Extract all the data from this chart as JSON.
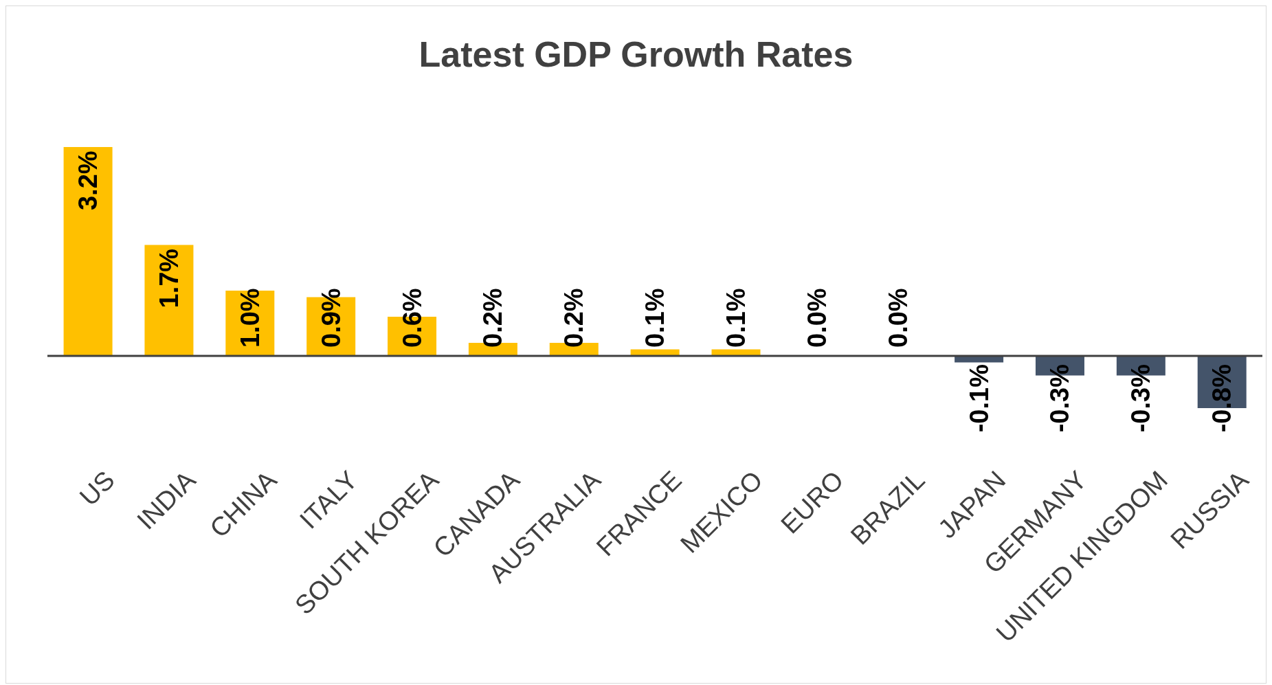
{
  "chart_data": {
    "type": "bar",
    "title": "Latest GDP Growth Rates",
    "categories": [
      "US",
      "INDIA",
      "CHINA",
      "ITALY",
      "SOUTH KOREA",
      "CANADA",
      "AUSTRALIA",
      "FRANCE",
      "MEXICO",
      "EURO",
      "BRAZIL",
      "JAPAN",
      "GERMANY",
      "UNITED KINGDOM",
      "RUSSIA"
    ],
    "values": [
      3.2,
      1.7,
      1.0,
      0.9,
      0.6,
      0.2,
      0.2,
      0.1,
      0.1,
      0.0,
      0.0,
      -0.1,
      -0.3,
      -0.3,
      -0.8
    ],
    "colors": [
      "#ffc000",
      "#ffc000",
      "#ffc000",
      "#ffc000",
      "#ffc000",
      "#ffc000",
      "#ffc000",
      "#ffc000",
      "#ffc000",
      "#ffc000",
      "#ffc000",
      "#44546a",
      "#44546a",
      "#44546a",
      "#44546a"
    ],
    "value_labels": [
      "3.2%",
      "1.7%",
      "1.0%",
      "0.9%",
      "0.6%",
      "0.2%",
      "0.2%",
      "0.1%",
      "0.1%",
      "0.0%",
      "0.0%",
      "-0.1%",
      "-0.3%",
      "-0.3%",
      "-0.8%"
    ],
    "grid": false,
    "legend": false
  }
}
